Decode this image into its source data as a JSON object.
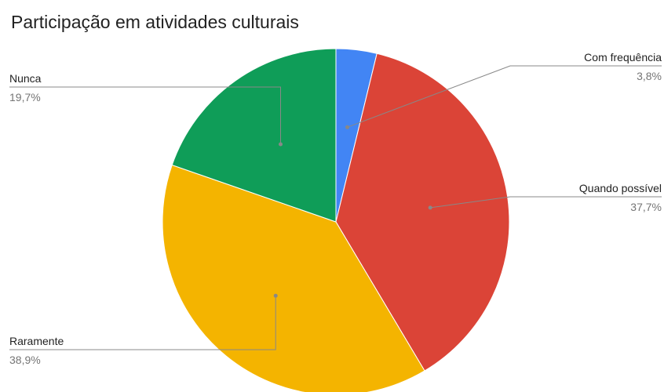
{
  "chart_data": {
    "type": "pie",
    "title": "Participação em atividades culturais",
    "slices": [
      {
        "label": "Com frequência",
        "value": 3.8,
        "display": "3,8%",
        "color": "#4285F4"
      },
      {
        "label": "Quando possível",
        "value": 37.7,
        "display": "37,7%",
        "color": "#DB4437"
      },
      {
        "label": "Raramente",
        "value": 38.9,
        "display": "38,9%",
        "color": "#F4B400"
      },
      {
        "label": "Nunca",
        "value": 19.7,
        "display": "19,7%",
        "color": "#0F9D58"
      }
    ],
    "start_angle": "12 o'clock",
    "direction": "clockwise",
    "legend": "none"
  }
}
